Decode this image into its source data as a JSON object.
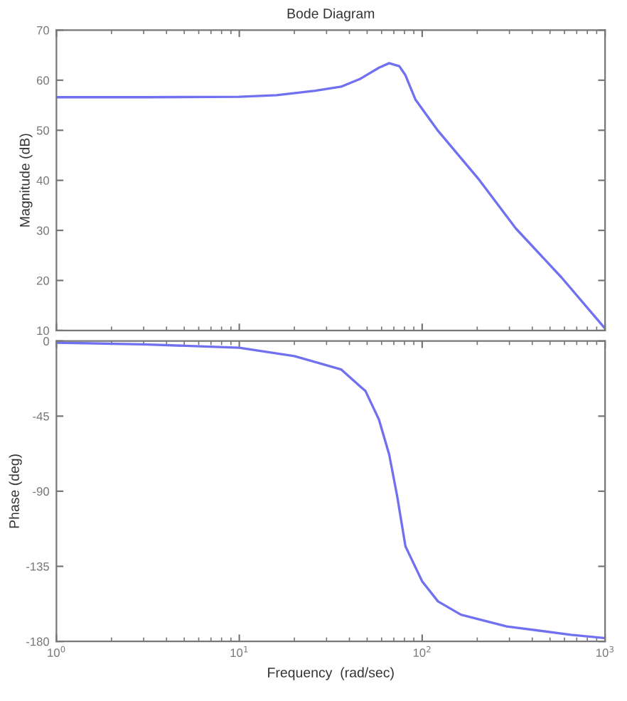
{
  "chart_data": [
    {
      "type": "line",
      "title": "Bode Diagram",
      "ylabel": "Magnitude (dB)",
      "log": "x",
      "xlim": [
        1,
        1000
      ],
      "ylim": [
        10,
        70
      ],
      "yticks": [
        10,
        20,
        30,
        40,
        50,
        60,
        70
      ],
      "xticks": [
        {
          "value": 1,
          "label": null
        },
        {
          "value": 10,
          "label": null
        },
        {
          "value": 100,
          "label": null
        },
        {
          "value": 1000,
          "label": null
        }
      ],
      "tick_labels": "y",
      "grid": false,
      "legend": false,
      "x": [
        1,
        3,
        10,
        16,
        26,
        36,
        46,
        58,
        66,
        75,
        81,
        92,
        122,
        205,
        325,
        578,
        1000
      ],
      "series": [
        {
          "color": "#7070f0",
          "values": [
            56.6,
            56.6,
            56.7,
            57.0,
            57.9,
            58.7,
            60.3,
            62.5,
            63.4,
            62.8,
            61.0,
            56.1,
            49.9,
            40.1,
            30.4,
            20.6,
            10.4
          ]
        }
      ]
    },
    {
      "type": "line",
      "xlabel": "Frequency  (rad/sec)",
      "ylabel": "Phase (deg)",
      "log": "x",
      "xlim": [
        1,
        1000
      ],
      "ylim": [
        -180,
        0
      ],
      "yticks": [
        {
          "value": -180,
          "label": "-180"
        },
        {
          "value": -135,
          "label": "-135"
        },
        {
          "value": -90,
          "label": "-90"
        },
        {
          "value": -45,
          "label": "-45"
        },
        0
      ],
      "xticks": [
        {
          "value": 1,
          "label": "10$^{0}$"
        },
        {
          "value": 10,
          "label": "10$^{1}$"
        },
        {
          "value": 100,
          "label": "10$^{2}$"
        },
        {
          "value": 1000,
          "label": "10$^{3}$"
        }
      ],
      "grid": false,
      "legend": false,
      "x": [
        1,
        3,
        10,
        20,
        36,
        49,
        58,
        66,
        73,
        81,
        100,
        122,
        163,
        290,
        650,
        1000
      ],
      "series": [
        {
          "color": "#7070f0",
          "values": [
            -1,
            -2,
            -4,
            -9,
            -17,
            -30,
            -47,
            -68,
            -93,
            -123,
            -144,
            -156,
            -164,
            -171,
            -176,
            -178
          ]
        }
      ]
    }
  ]
}
